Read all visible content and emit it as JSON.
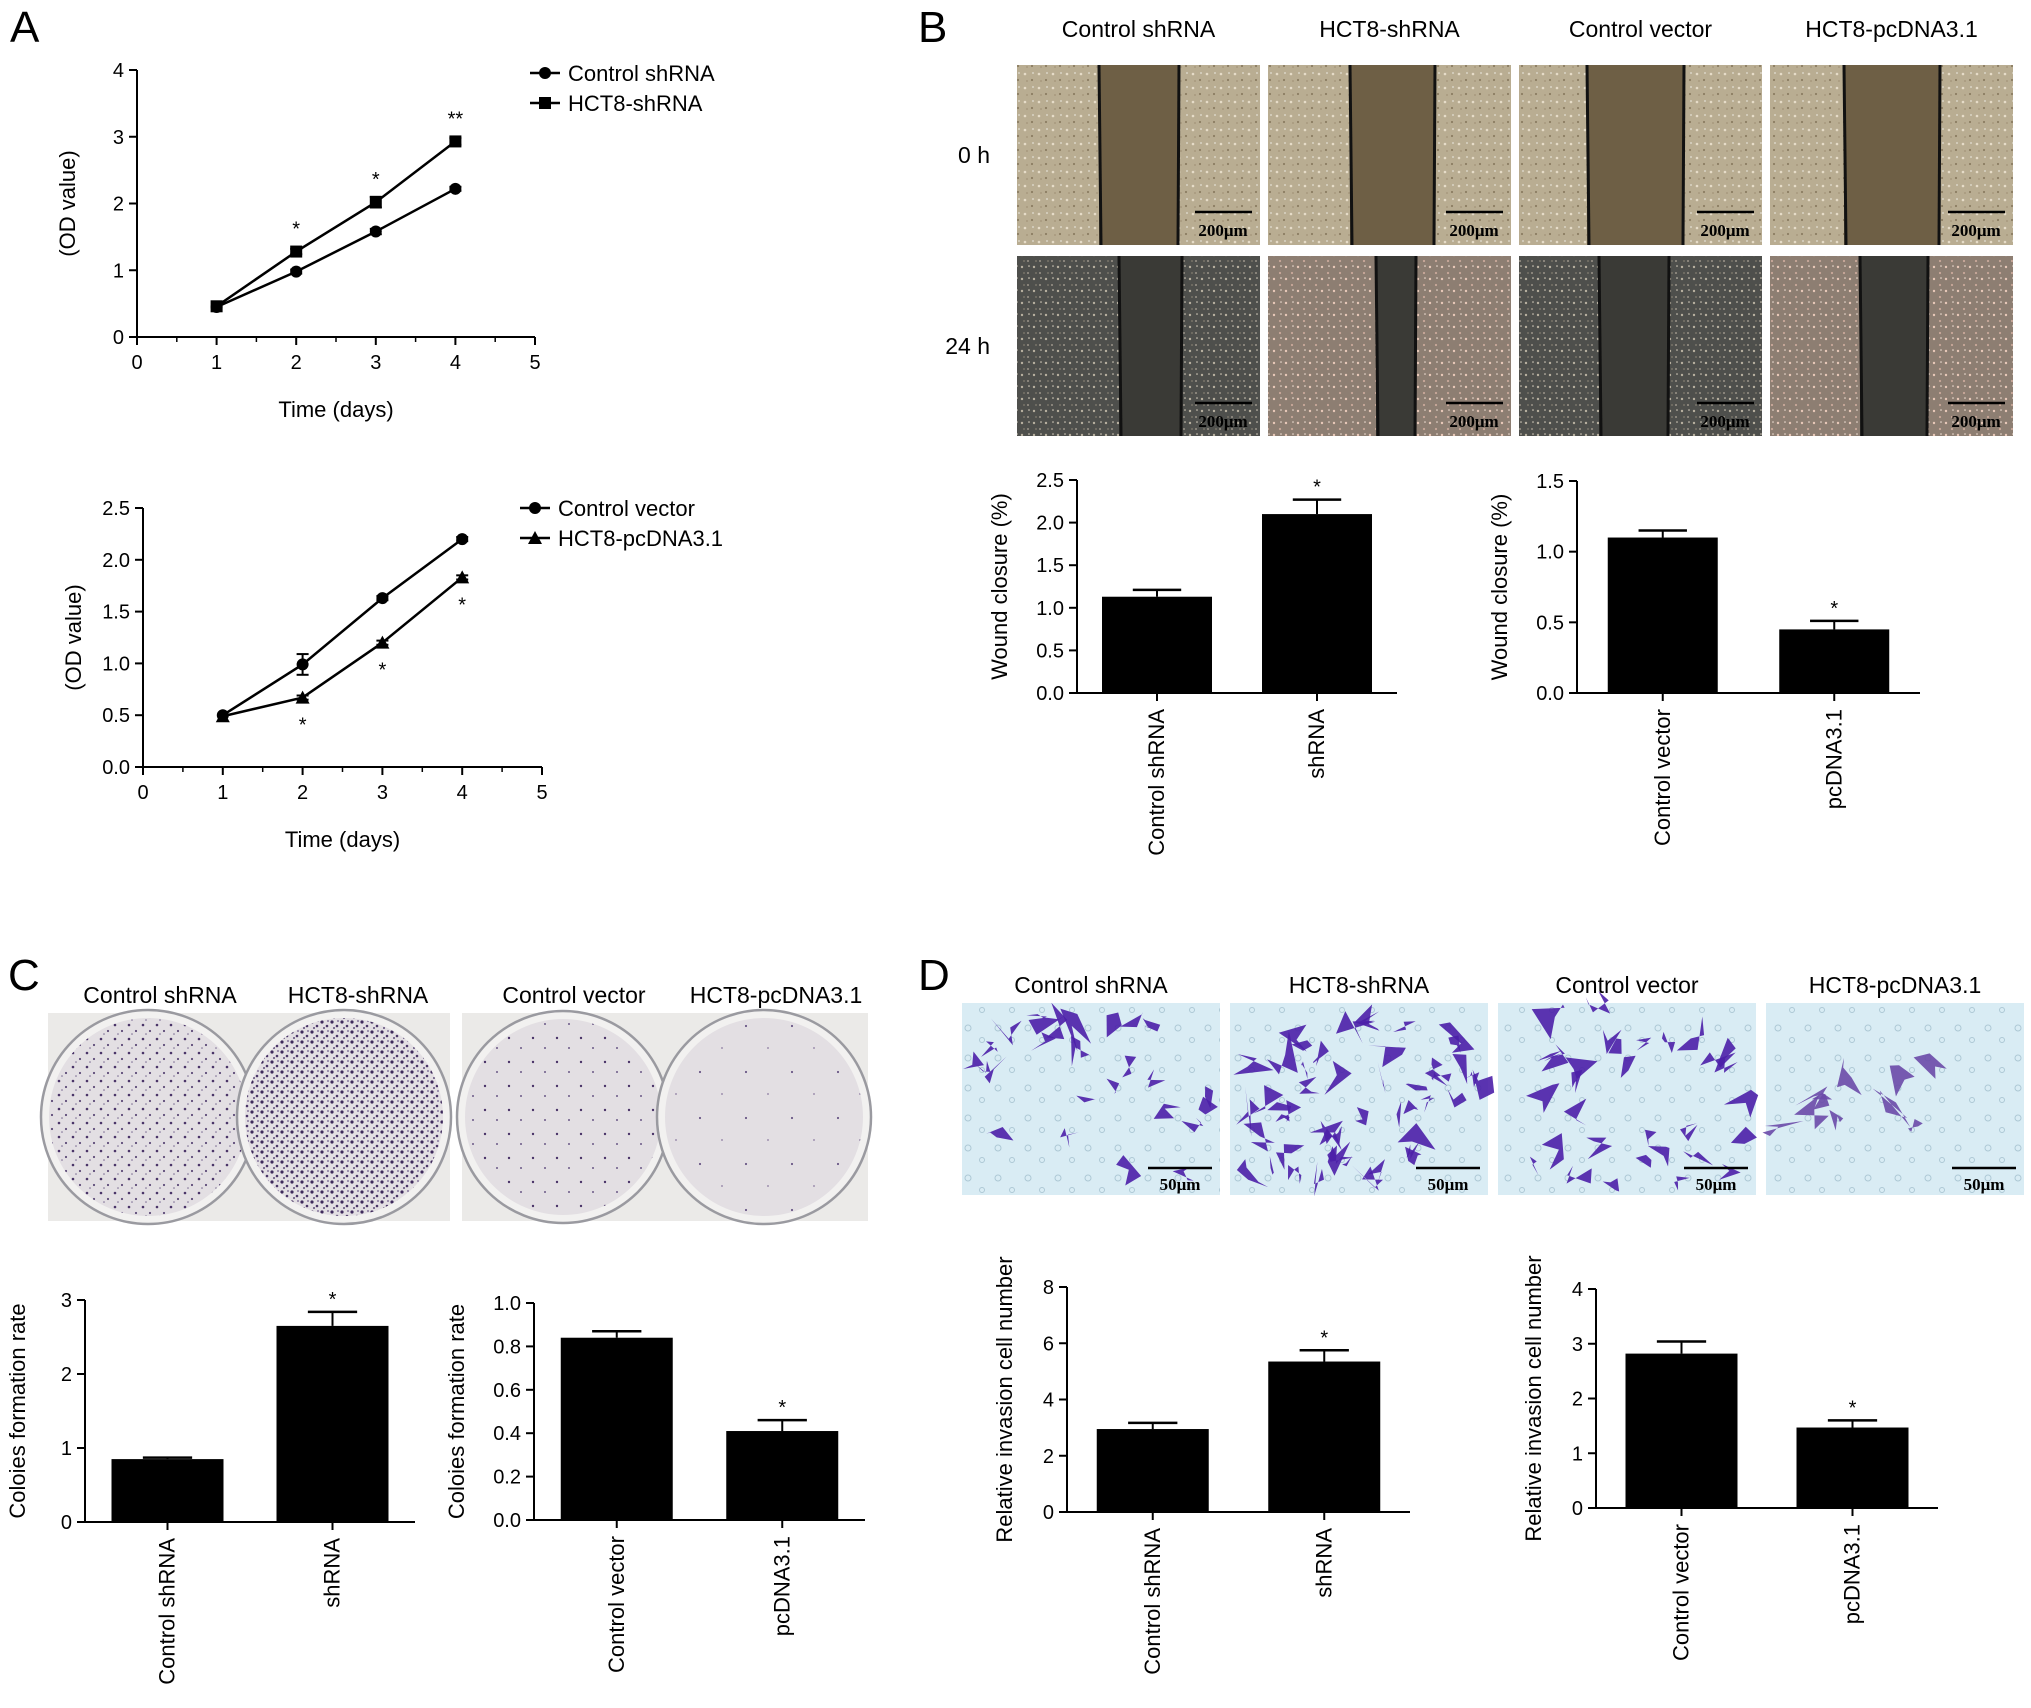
{
  "panels": {
    "A": {
      "letter": "A",
      "charts": [
        {
          "type": "line",
          "x": [
            1,
            2,
            3,
            4
          ],
          "xlim": [
            0,
            5
          ],
          "xticks": [
            0,
            1,
            2,
            3,
            4,
            5
          ],
          "ylim": [
            0,
            4
          ],
          "yticks": [
            0,
            1,
            2,
            3,
            4
          ],
          "xlabel": "Time (days)",
          "ylabel": "(OD value)",
          "legend_position": "top-right",
          "series": [
            {
              "name": "Control shRNA",
              "marker": "circle",
              "values": [
                0.45,
                0.98,
                1.58,
                2.22
              ],
              "err": [
                0,
                0.03,
                0.04,
                0.03
              ]
            },
            {
              "name": "HCT8-shRNA",
              "marker": "square",
              "values": [
                0.46,
                1.28,
                2.02,
                2.93
              ],
              "err": [
                0,
                0.04,
                0.08,
                0.05
              ],
              "sig": [
                "",
                "*",
                "*",
                "**"
              ]
            }
          ]
        },
        {
          "type": "line",
          "x": [
            1,
            2,
            3,
            4
          ],
          "xlim": [
            0,
            5
          ],
          "xticks": [
            0,
            1,
            2,
            3,
            4,
            5
          ],
          "ylim": [
            0,
            2.5
          ],
          "yticks": [
            "0.0",
            "0.5",
            "1.0",
            "1.5",
            "2.0",
            "2.5"
          ],
          "xlabel": "Time (days)",
          "ylabel": "(OD value)",
          "legend_position": "top-right",
          "series": [
            {
              "name": "Control vector",
              "marker": "circle",
              "values": [
                0.5,
                0.99,
                1.63,
                2.2
              ],
              "err": [
                0,
                0.1,
                0.02,
                0.02
              ]
            },
            {
              "name": "HCT8-pcDNA3.1",
              "marker": "triangle",
              "values": [
                0.49,
                0.67,
                1.2,
                1.83
              ],
              "err": [
                0,
                0.02,
                0.02,
                0.02
              ],
              "sig": [
                "",
                "*",
                "*",
                "*"
              ]
            }
          ]
        }
      ]
    },
    "B": {
      "letter": "B",
      "columns": [
        "Control shRNA",
        "HCT8-shRNA",
        "Control vector",
        "HCT8-pcDNA3.1"
      ],
      "rows": [
        "0 h",
        "24 h"
      ],
      "scale_bar": "200μm",
      "charts": [
        {
          "type": "bar",
          "categories": [
            "Control shRNA",
            "shRNA"
          ],
          "values": [
            1.13,
            2.1
          ],
          "err": [
            0.08,
            0.17
          ],
          "sig": [
            "",
            "*"
          ],
          "ylim": [
            0,
            2.5
          ],
          "yticks": [
            "0.0",
            "0.5",
            "1.0",
            "1.5",
            "2.0",
            "2.5"
          ],
          "ylabel": "Wound closure (%)"
        },
        {
          "type": "bar",
          "categories": [
            "Control vector",
            "pcDNA3.1"
          ],
          "values": [
            1.1,
            0.45
          ],
          "err": [
            0.05,
            0.06
          ],
          "sig": [
            "",
            "*"
          ],
          "ylim": [
            0,
            1.5
          ],
          "yticks": [
            "0.0",
            "0.5",
            "1.0",
            "1.5"
          ],
          "ylabel": "Wound closure (%)"
        }
      ]
    },
    "C": {
      "letter": "C",
      "plate_labels": [
        "Control shRNA",
        "HCT8-shRNA",
        "Control vector",
        "HCT8-pcDNA3.1"
      ],
      "charts": [
        {
          "type": "bar",
          "categories": [
            "Control shRNA",
            "shRNA"
          ],
          "values": [
            0.85,
            2.65
          ],
          "err": [
            0.02,
            0.19
          ],
          "sig": [
            "",
            "*"
          ],
          "ylim": [
            0,
            3
          ],
          "yticks": [
            "0",
            "1",
            "2",
            "3"
          ],
          "ylabel": "Coloies formation rate"
        },
        {
          "type": "bar",
          "categories": [
            "Control vector",
            "pcDNA3.1"
          ],
          "values": [
            0.84,
            0.41
          ],
          "err": [
            0.03,
            0.05
          ],
          "sig": [
            "",
            "*"
          ],
          "ylim": [
            0,
            1.0
          ],
          "yticks": [
            "0.0",
            "0.2",
            "0.4",
            "0.6",
            "0.8",
            "1.0"
          ],
          "ylabel": "Coloies formation rate"
        }
      ]
    },
    "D": {
      "letter": "D",
      "columns": [
        "Control shRNA",
        "HCT8-shRNA",
        "Control vector",
        "HCT8-pcDNA3.1"
      ],
      "scale_bar": "50μm",
      "charts": [
        {
          "type": "bar",
          "categories": [
            "Control shRNA",
            "shRNA"
          ],
          "values": [
            2.95,
            5.35
          ],
          "err": [
            0.22,
            0.4
          ],
          "sig": [
            "",
            "*"
          ],
          "ylim": [
            0,
            8
          ],
          "yticks": [
            "0",
            "2",
            "4",
            "6",
            "8"
          ],
          "ylabel": "Relative invasion cell number"
        },
        {
          "type": "bar",
          "categories": [
            "Control vector",
            "pcDNA3.1"
          ],
          "values": [
            2.82,
            1.47
          ],
          "err": [
            0.22,
            0.13
          ],
          "sig": [
            "",
            "*"
          ],
          "ylim": [
            0,
            4
          ],
          "yticks": [
            "0",
            "1",
            "2",
            "3",
            "4"
          ],
          "ylabel": "Relative invasion cell number"
        }
      ]
    }
  },
  "colors": {
    "bar": "#000000",
    "wound_well_0h": "#b9ad92",
    "wound_gap_0h": "#6e5f45",
    "wound_well_24h": "#4e4f4c",
    "wound_gap_24h": "#3a3a36",
    "plate_bg": "#ebeae8",
    "plate_inner": "#e3dfe3",
    "colony": "#3f2a5c",
    "invasion_bg": "#d9ecf4",
    "invasion_cell": "#4b1fa8"
  }
}
